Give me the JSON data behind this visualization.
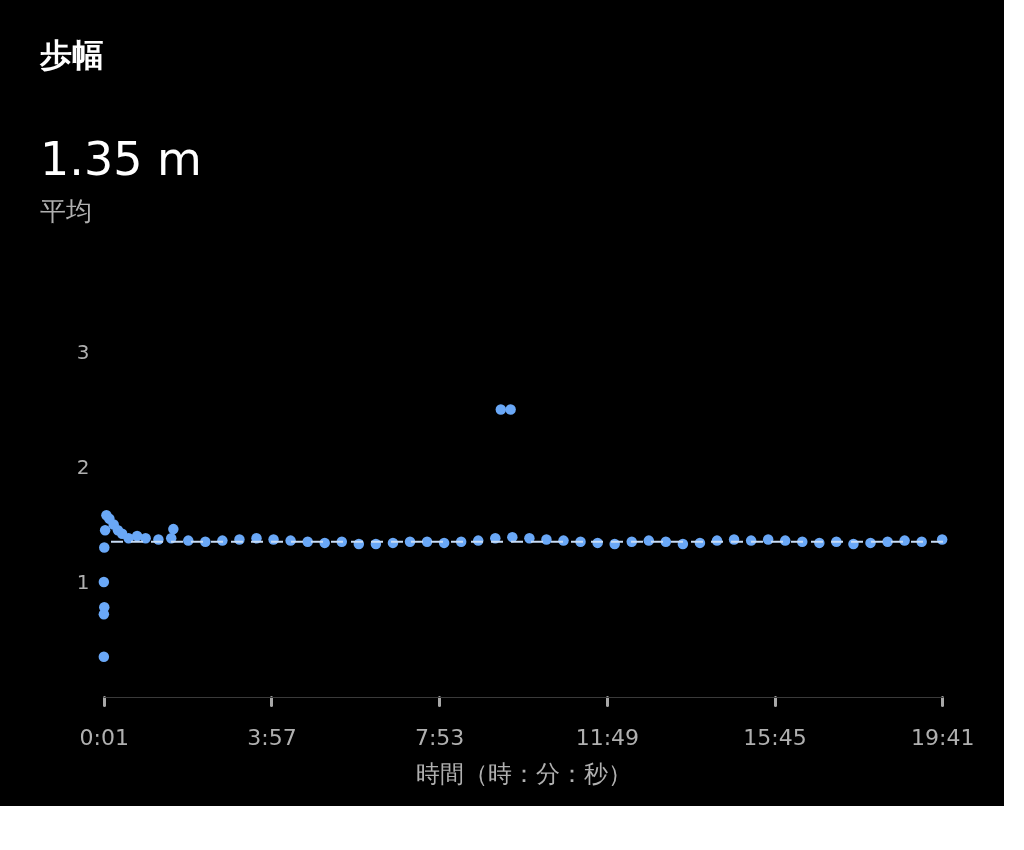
{
  "chart_data": {
    "type": "scatter",
    "title": "歩幅",
    "subtitle": "1.35 m",
    "annotations": [
      "平均"
    ],
    "xlabel": "時間（時：分：秒）",
    "x": [
      0.02,
      0.02,
      0.03,
      0.02,
      0.03,
      0.05,
      0.08,
      0.15,
      0.25,
      0.35,
      0.45,
      0.6,
      0.8,
      1.0,
      1.3,
      1.6,
      1.65,
      2.0,
      2.4,
      2.8,
      3.2,
      3.6,
      4.0,
      4.4,
      4.8,
      5.2,
      5.6,
      6.0,
      6.4,
      6.8,
      7.2,
      7.6,
      8.0,
      8.4,
      8.8,
      9.2,
      9.33,
      9.56,
      9.6,
      10.0,
      10.4,
      10.8,
      11.2,
      11.6,
      12.0,
      12.4,
      12.8,
      13.2,
      13.6,
      14.0,
      14.4,
      14.8,
      15.2,
      15.6,
      16.0,
      16.4,
      16.8,
      17.2,
      17.6,
      18.0,
      18.4,
      18.8,
      19.2,
      19.68
    ],
    "series": [
      {
        "color": "#6aa8f7",
        "values": [
          0.35,
          0.72,
          0.78,
          1.0,
          1.3,
          1.45,
          1.58,
          1.55,
          1.5,
          1.45,
          1.42,
          1.38,
          1.4,
          1.38,
          1.37,
          1.38,
          1.46,
          1.36,
          1.35,
          1.36,
          1.37,
          1.38,
          1.37,
          1.36,
          1.35,
          1.34,
          1.35,
          1.33,
          1.33,
          1.34,
          1.35,
          1.35,
          1.34,
          1.35,
          1.36,
          1.38,
          2.5,
          2.5,
          1.39,
          1.38,
          1.37,
          1.36,
          1.35,
          1.34,
          1.33,
          1.35,
          1.36,
          1.35,
          1.33,
          1.34,
          1.36,
          1.37,
          1.36,
          1.37,
          1.36,
          1.35,
          1.34,
          1.35,
          1.33,
          1.34,
          1.35,
          1.36,
          1.35,
          1.37
        ]
      }
    ],
    "xlim": [
      0,
      19.7
    ],
    "ylim": [
      0,
      3
    ],
    "xticks": [
      {
        "value": 0.0167,
        "label": "0:01"
      },
      {
        "value": 3.95,
        "label": "3:57"
      },
      {
        "value": 7.8833,
        "label": "7:53"
      },
      {
        "value": 11.8167,
        "label": "11:49"
      },
      {
        "value": 15.75,
        "label": "15:45"
      },
      {
        "value": 19.6833,
        "label": "19:41"
      }
    ],
    "yticks": [
      1,
      2,
      3
    ],
    "ref_lines": [
      {
        "axis": "y",
        "value": 1.35,
        "color": "#c8dcf5",
        "line_style": "dashed"
      }
    ],
    "marker": "circle",
    "grid": false
  }
}
